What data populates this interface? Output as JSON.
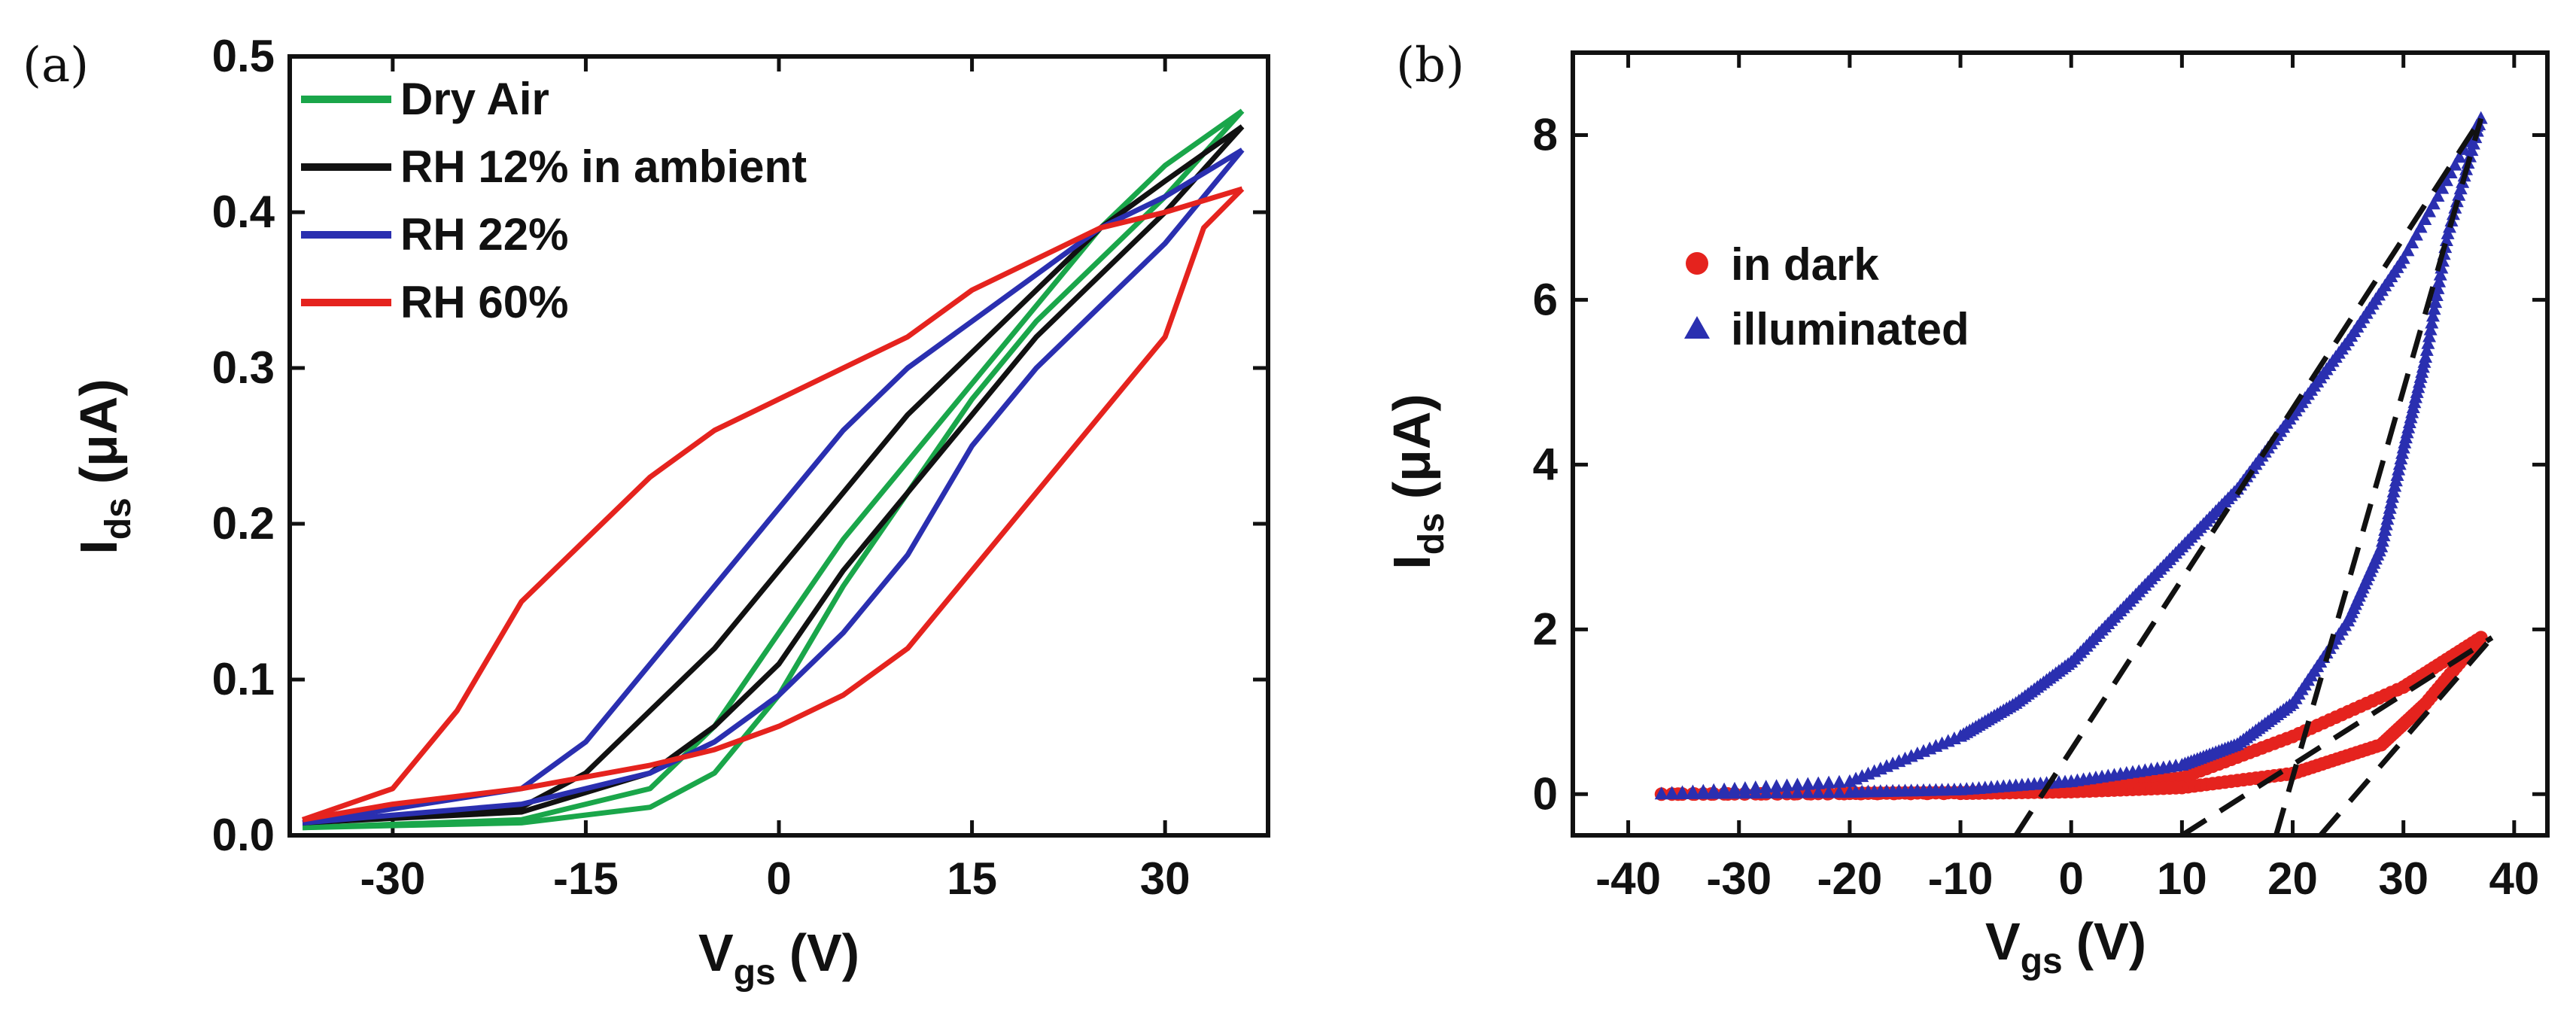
{
  "chart_data": [
    {
      "panel_label": "(a)",
      "type": "line",
      "title": "",
      "xlabel": {
        "main": "V",
        "sub": "gs",
        "unit": "(V)"
      },
      "ylabel": {
        "main": "I",
        "sub": "ds",
        "unit": "(μA)"
      },
      "xlim": [
        -38,
        38
      ],
      "ylim": [
        0,
        0.5
      ],
      "xticks": [
        -30,
        -15,
        0,
        15,
        30
      ],
      "yticks": [
        0.0,
        0.1,
        0.2,
        0.3,
        0.4,
        0.5
      ],
      "ytick_labels": [
        "0.0",
        "0.1",
        "0.2",
        "0.3",
        "0.4",
        "0.5"
      ],
      "grid": false,
      "legend_position": "top-left",
      "series": [
        {
          "name": "Dry Air",
          "color": "#1aa64a",
          "forward": [
            [
              -37,
              0.005
            ],
            [
              -20,
              0.01
            ],
            [
              -10,
              0.03
            ],
            [
              -5,
              0.07
            ],
            [
              0,
              0.13
            ],
            [
              5,
              0.19
            ],
            [
              10,
              0.24
            ],
            [
              15,
              0.29
            ],
            [
              20,
              0.34
            ],
            [
              25,
              0.39
            ],
            [
              30,
              0.43
            ],
            [
              36,
              0.465
            ]
          ],
          "backward": [
            [
              36,
              0.465
            ],
            [
              30,
              0.41
            ],
            [
              25,
              0.37
            ],
            [
              20,
              0.33
            ],
            [
              15,
              0.28
            ],
            [
              10,
              0.22
            ],
            [
              5,
              0.16
            ],
            [
              0,
              0.09
            ],
            [
              -5,
              0.04
            ],
            [
              -10,
              0.018
            ],
            [
              -20,
              0.008
            ],
            [
              -37,
              0.005
            ]
          ]
        },
        {
          "name": "RH 12% in ambient",
          "color": "#111111",
          "forward": [
            [
              -37,
              0.008
            ],
            [
              -20,
              0.018
            ],
            [
              -15,
              0.04
            ],
            [
              -10,
              0.08
            ],
            [
              -5,
              0.12
            ],
            [
              0,
              0.17
            ],
            [
              5,
              0.22
            ],
            [
              10,
              0.27
            ],
            [
              15,
              0.31
            ],
            [
              20,
              0.35
            ],
            [
              25,
              0.39
            ],
            [
              30,
              0.42
            ],
            [
              36,
              0.455
            ]
          ],
          "backward": [
            [
              36,
              0.455
            ],
            [
              30,
              0.4
            ],
            [
              25,
              0.36
            ],
            [
              20,
              0.32
            ],
            [
              15,
              0.27
            ],
            [
              10,
              0.22
            ],
            [
              5,
              0.17
            ],
            [
              0,
              0.11
            ],
            [
              -5,
              0.07
            ],
            [
              -10,
              0.04
            ],
            [
              -20,
              0.015
            ],
            [
              -37,
              0.008
            ]
          ]
        },
        {
          "name": "RH 22%",
          "color": "#2a2fb0",
          "forward": [
            [
              -37,
              0.008
            ],
            [
              -20,
              0.03
            ],
            [
              -15,
              0.06
            ],
            [
              -10,
              0.11
            ],
            [
              -5,
              0.16
            ],
            [
              0,
              0.21
            ],
            [
              5,
              0.26
            ],
            [
              10,
              0.3
            ],
            [
              15,
              0.33
            ],
            [
              20,
              0.36
            ],
            [
              25,
              0.39
            ],
            [
              30,
              0.41
            ],
            [
              36,
              0.44
            ]
          ],
          "backward": [
            [
              36,
              0.44
            ],
            [
              30,
              0.38
            ],
            [
              25,
              0.34
            ],
            [
              20,
              0.3
            ],
            [
              15,
              0.25
            ],
            [
              10,
              0.18
            ],
            [
              5,
              0.13
            ],
            [
              0,
              0.09
            ],
            [
              -5,
              0.06
            ],
            [
              -10,
              0.04
            ],
            [
              -20,
              0.02
            ],
            [
              -37,
              0.008
            ]
          ]
        },
        {
          "name": "RH 60%",
          "color": "#e5231e",
          "forward": [
            [
              -37,
              0.01
            ],
            [
              -30,
              0.03
            ],
            [
              -25,
              0.08
            ],
            [
              -20,
              0.15
            ],
            [
              -15,
              0.19
            ],
            [
              -10,
              0.23
            ],
            [
              -5,
              0.26
            ],
            [
              0,
              0.28
            ],
            [
              5,
              0.3
            ],
            [
              10,
              0.32
            ],
            [
              15,
              0.35
            ],
            [
              20,
              0.37
            ],
            [
              25,
              0.39
            ],
            [
              30,
              0.4
            ],
            [
              36,
              0.415
            ]
          ],
          "backward": [
            [
              36,
              0.415
            ],
            [
              33,
              0.39
            ],
            [
              30,
              0.32
            ],
            [
              25,
              0.27
            ],
            [
              20,
              0.22
            ],
            [
              15,
              0.17
            ],
            [
              10,
              0.12
            ],
            [
              5,
              0.09
            ],
            [
              0,
              0.07
            ],
            [
              -5,
              0.055
            ],
            [
              -10,
              0.045
            ],
            [
              -20,
              0.03
            ],
            [
              -30,
              0.02
            ],
            [
              -37,
              0.01
            ]
          ]
        }
      ]
    },
    {
      "panel_label": "(b)",
      "type": "scatter",
      "title": "",
      "xlabel": {
        "main": "V",
        "sub": "gs",
        "unit": "(V)"
      },
      "ylabel": {
        "main": "I",
        "sub": "ds",
        "unit": "(μA)"
      },
      "xlim": [
        -45,
        43
      ],
      "ylim": [
        -0.5,
        9.0
      ],
      "xticks": [
        -40,
        -30,
        -20,
        -10,
        0,
        10,
        20,
        30,
        40
      ],
      "yticks": [
        0,
        2,
        4,
        6,
        8
      ],
      "grid": false,
      "legend_position": "upper-left",
      "series": [
        {
          "name": "in dark",
          "marker": "circle",
          "color": "#e5231e",
          "forward": [
            [
              -37,
              0.0
            ],
            [
              -20,
              0.01
            ],
            [
              -10,
              0.02
            ],
            [
              0,
              0.05
            ],
            [
              10,
              0.2
            ],
            [
              20,
              0.7
            ],
            [
              30,
              1.3
            ],
            [
              37,
              1.9
            ]
          ],
          "backward": [
            [
              37,
              1.9
            ],
            [
              32,
              1.1
            ],
            [
              28,
              0.6
            ],
            [
              20,
              0.25
            ],
            [
              10,
              0.08
            ],
            [
              0,
              0.03
            ],
            [
              -10,
              0.01
            ],
            [
              -37,
              0.0
            ]
          ]
        },
        {
          "name": "illuminated",
          "marker": "triangle",
          "color": "#2a2fb0",
          "forward": [
            [
              -37,
              0.0
            ],
            [
              -20,
              0.15
            ],
            [
              -10,
              0.7
            ],
            [
              -5,
              1.1
            ],
            [
              0,
              1.6
            ],
            [
              5,
              2.3
            ],
            [
              10,
              3.0
            ],
            [
              15,
              3.7
            ],
            [
              20,
              4.6
            ],
            [
              25,
              5.5
            ],
            [
              30,
              6.5
            ],
            [
              37,
              8.2
            ]
          ],
          "backward": [
            [
              37,
              8.2
            ],
            [
              34,
              6.8
            ],
            [
              32,
              5.3
            ],
            [
              30,
              4.2
            ],
            [
              28,
              3.0
            ],
            [
              25,
              2.1
            ],
            [
              20,
              1.1
            ],
            [
              15,
              0.6
            ],
            [
              10,
              0.35
            ],
            [
              0,
              0.15
            ],
            [
              -10,
              0.05
            ],
            [
              -20,
              0.02
            ],
            [
              -37,
              0.0
            ]
          ]
        }
      ],
      "fit_lines": [
        {
          "from": [
            -5,
            -0.5
          ],
          "to": [
            37,
            8.2
          ]
        },
        {
          "from": [
            18.5,
            -0.5
          ],
          "to": [
            37,
            8.2
          ]
        },
        {
          "from": [
            10,
            -0.5
          ],
          "to": [
            38,
            1.9
          ]
        },
        {
          "from": [
            22.5,
            -0.5
          ],
          "to": [
            38,
            1.9
          ]
        }
      ]
    }
  ]
}
